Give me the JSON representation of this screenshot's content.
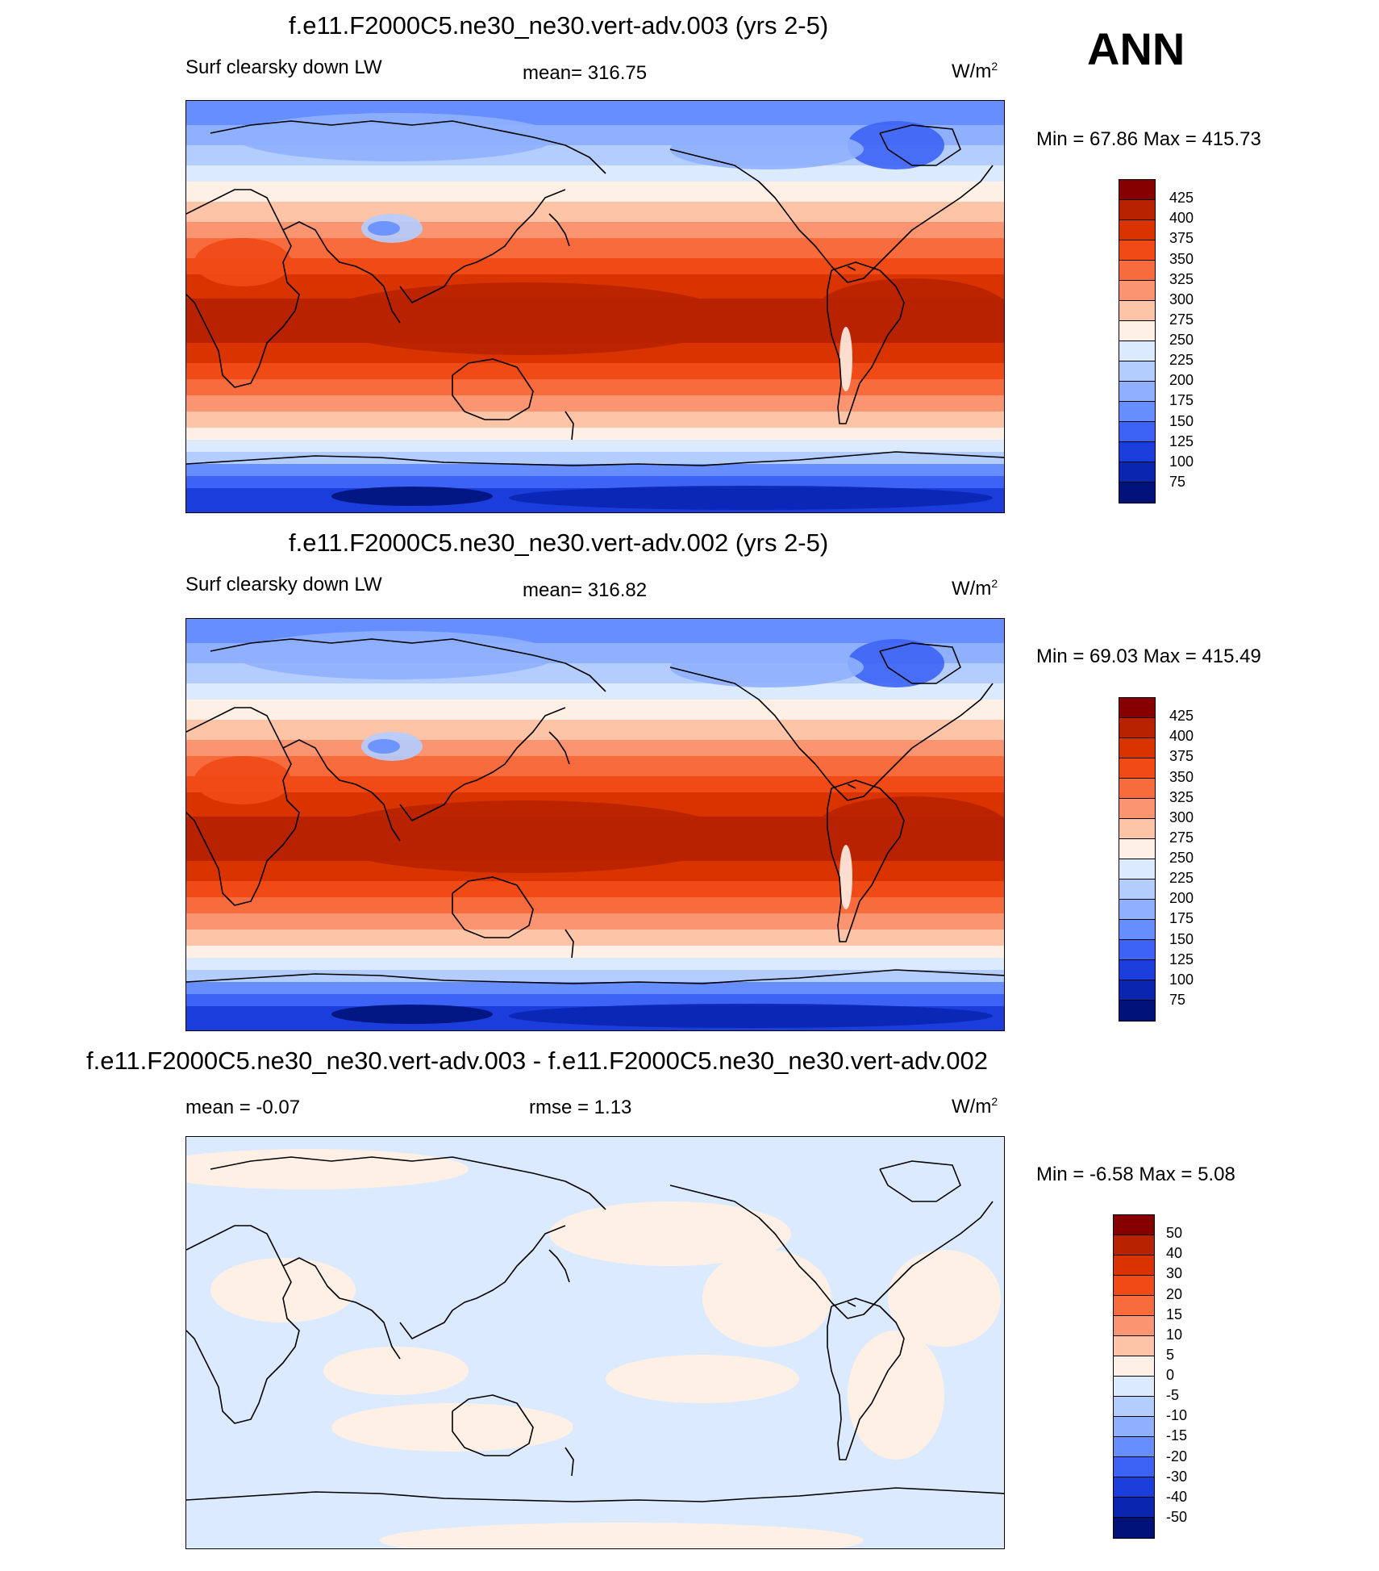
{
  "season": "ANN",
  "panels": [
    {
      "title": "f.e11.F2000C5.ne30_ne30.vert-adv.003 (yrs 2-5)",
      "left_label": "Surf clearsky down LW",
      "center_label": "mean= 316.75",
      "units": "W/m",
      "units_sup": "2",
      "minmax": "Min =  67.86 Max = 415.73",
      "type": "field"
    },
    {
      "title": "f.e11.F2000C5.ne30_ne30.vert-adv.002 (yrs 2-5)",
      "left_label": "Surf clearsky down LW",
      "center_label": "mean= 316.82",
      "units": "W/m",
      "units_sup": "2",
      "minmax": "Min =  69.03 Max = 415.49",
      "type": "field"
    },
    {
      "title": "f.e11.F2000C5.ne30_ne30.vert-adv.003 - f.e11.F2000C5.ne30_ne30.vert-adv.002",
      "left_label": "mean =  -0.07",
      "center_label": "rmse =   1.13",
      "units": "W/m",
      "units_sup": "2",
      "minmax": "Min =  -6.58 Max =   5.08",
      "type": "diff"
    }
  ],
  "colorbar_field": {
    "labels": [
      "425",
      "400",
      "375",
      "350",
      "325",
      "300",
      "275",
      "250",
      "225",
      "200",
      "175",
      "150",
      "125",
      "100",
      "75"
    ],
    "colors": [
      "#870000",
      "#b82200",
      "#d93300",
      "#f04a16",
      "#f86b3c",
      "#fb9470",
      "#fdc4a8",
      "#fff0e6",
      "#dceaff",
      "#b3cdff",
      "#8fb0ff",
      "#668eff",
      "#3c63f5",
      "#1a3ddb",
      "#0a25b0",
      "#00127a"
    ]
  },
  "colorbar_diff": {
    "labels": [
      "50",
      "40",
      "30",
      "20",
      "15",
      "10",
      "5",
      "0",
      "-5",
      "-10",
      "-15",
      "-20",
      "-30",
      "-40",
      "-50"
    ],
    "colors": [
      "#870000",
      "#b82200",
      "#d93300",
      "#f04a16",
      "#f86b3c",
      "#fb9470",
      "#fdc4a8",
      "#fff0e6",
      "#dceaff",
      "#b3cdff",
      "#8fb0ff",
      "#668eff",
      "#3c63f5",
      "#1a3ddb",
      "#0a25b0",
      "#00127a"
    ]
  }
}
